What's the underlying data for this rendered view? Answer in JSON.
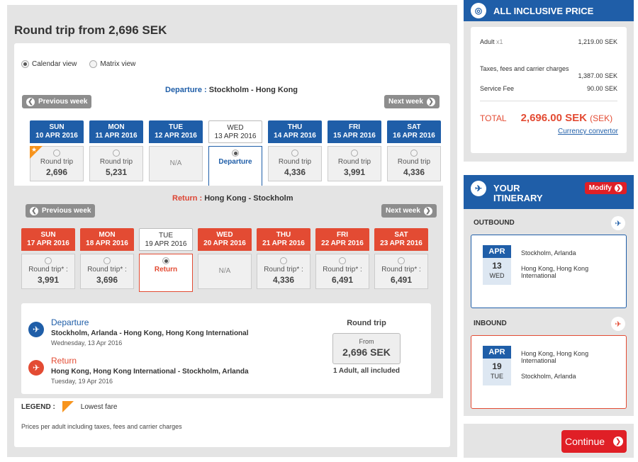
{
  "page": {
    "title": "Round trip from 2,696 SEK"
  },
  "views": {
    "calendar": "Calendar view",
    "matrix": "Matrix view"
  },
  "departure": {
    "label": "Departure :",
    "route": "Stockholm - Hong Kong",
    "prev": "Previous week",
    "next": "Next week",
    "days": [
      {
        "dow": "SUN",
        "date": "10 APR 2016",
        "type": "Round trip",
        "price": "2,696",
        "lowest": true
      },
      {
        "dow": "MON",
        "date": "11 APR 2016",
        "type": "Round trip",
        "price": "5,231"
      },
      {
        "dow": "TUE",
        "date": "12 APR 2016",
        "type": "N/A",
        "price": ""
      },
      {
        "dow": "WED",
        "date": "13 APR 2016",
        "type": "Departure",
        "price": "",
        "selected": true
      },
      {
        "dow": "THU",
        "date": "14 APR 2016",
        "type": "Round trip",
        "price": "4,336"
      },
      {
        "dow": "FRI",
        "date": "15 APR 2016",
        "type": "Round trip",
        "price": "3,991"
      },
      {
        "dow": "SAT",
        "date": "16 APR 2016",
        "type": "Round trip",
        "price": "4,336"
      }
    ]
  },
  "return": {
    "label": "Return :",
    "route": "Hong Kong - Stockholm",
    "prev": "Previous week",
    "next": "Next week",
    "days": [
      {
        "dow": "SUN",
        "date": "17 APR 2016",
        "type": "Round trip* :",
        "price": "3,991"
      },
      {
        "dow": "MON",
        "date": "18 APR 2016",
        "type": "Round trip* :",
        "price": "3,696"
      },
      {
        "dow": "TUE",
        "date": "19 APR 2016",
        "type": "Return",
        "price": "",
        "selected": true
      },
      {
        "dow": "WED",
        "date": "20 APR 2016",
        "type": "N/A",
        "price": ""
      },
      {
        "dow": "THU",
        "date": "21 APR 2016",
        "type": "Round trip* :",
        "price": "4,336"
      },
      {
        "dow": "FRI",
        "date": "22 APR 2016",
        "type": "Round trip* :",
        "price": "6,491"
      },
      {
        "dow": "SAT",
        "date": "23 APR 2016",
        "type": "Round trip* :",
        "price": "6,491"
      }
    ]
  },
  "summary": {
    "dep_title": "Departure",
    "dep_route": "Stockholm, Arlanda - Hong Kong, Hong Kong International",
    "dep_date": "Wednesday, 13 Apr 2016",
    "ret_title": "Return",
    "ret_route": "Hong Kong, Hong Kong International - Stockholm, Arlanda",
    "ret_date": "Tuesday, 19 Apr 2016",
    "rt_label": "Round trip",
    "from": "From",
    "price": "2,696 SEK",
    "included": "1 Adult, all included"
  },
  "legend": {
    "label": "LEGEND :",
    "lowest": "Lowest fare"
  },
  "note": "Prices per adult including taxes, fees and carrier charges",
  "price_panel": {
    "title": "ALL INCLUSIVE PRICE",
    "adult_label": "Adult",
    "adult_count": "x1",
    "adult_value": "1,219.00 SEK",
    "taxes_label": "Taxes, fees and carrier charges",
    "taxes_value": "1,387.00 SEK",
    "fee_label": "Service Fee",
    "fee_value": "90.00 SEK",
    "total_label": "TOTAL",
    "total_value": "2,696.00 SEK",
    "total_cur": "(SEK)",
    "converter": "Currency convertor"
  },
  "itinerary": {
    "title_1": "YOUR",
    "title_2": "ITINERARY",
    "modify": "Modify",
    "outbound": {
      "label": "OUTBOUND",
      "month": "APR",
      "day": "13",
      "dow": "WED",
      "from": "Stockholm, Arlanda",
      "to": "Hong Kong, Hong Kong International"
    },
    "inbound": {
      "label": "INBOUND",
      "month": "APR",
      "day": "19",
      "dow": "TUE",
      "from": "Hong Kong, Hong Kong International",
      "to": "Stockholm, Arlanda"
    }
  },
  "continue": "Continue",
  "colors": {
    "blue": "#1f5ea8",
    "red": "#e34b33",
    "orange": "#f7941d",
    "cta": "#e01f26"
  }
}
